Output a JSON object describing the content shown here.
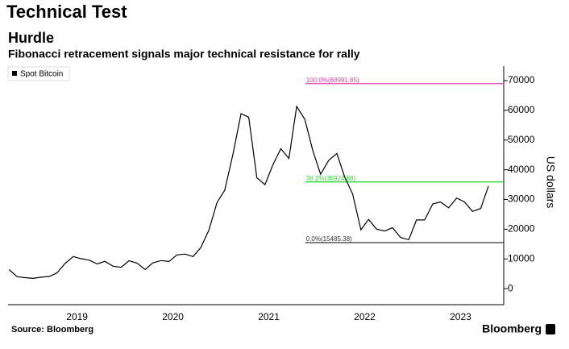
{
  "chart_data": {
    "type": "line",
    "title": "Technical Test",
    "subtitle_heading": "Hurdle",
    "subtitle": "Fibonacci retracement signals major technical resistance for rally",
    "y_axis_label": "US dollars",
    "source": "Source: Bloomberg",
    "brand": "Bloomberg",
    "legend": "top-left",
    "x": [
      2018.79,
      2018.875,
      2018.96,
      2019.04,
      2019.125,
      2019.21,
      2019.29,
      2019.375,
      2019.46,
      2019.54,
      2019.625,
      2019.71,
      2019.79,
      2019.875,
      2019.96,
      2020.04,
      2020.125,
      2020.21,
      2020.29,
      2020.375,
      2020.46,
      2020.54,
      2020.625,
      2020.71,
      2020.79,
      2020.875,
      2020.96,
      2021.04,
      2021.125,
      2021.21,
      2021.29,
      2021.375,
      2021.46,
      2021.54,
      2021.625,
      2021.71,
      2021.79,
      2021.875,
      2021.96,
      2022.04,
      2022.125,
      2022.21,
      2022.29,
      2022.375,
      2022.46,
      2022.54,
      2022.625,
      2022.71,
      2022.79,
      2022.875,
      2022.96,
      2023.04,
      2023.125,
      2023.21,
      2023.29,
      2023.375,
      2023.46,
      2023.54,
      2023.625,
      2023.71,
      2023.79
    ],
    "series": [
      {
        "name": "Spot Bitcoin",
        "color": "#000000",
        "values": [
          6400,
          4000,
          3700,
          3450,
          3850,
          4100,
          5300,
          8500,
          10800,
          10100,
          9600,
          8300,
          9200,
          7550,
          7200,
          9350,
          8600,
          6400,
          8650,
          9450,
          9150,
          11350,
          11650,
          10800,
          13800,
          19700,
          29000,
          33100,
          45200,
          58900,
          57700,
          37300,
          35000,
          41500,
          47100,
          43800,
          61300,
          57000,
          46300,
          38500,
          43200,
          45500,
          37700,
          31800,
          19800,
          23300,
          20000,
          19400,
          20500,
          17200,
          16500,
          23100,
          23100,
          28500,
          29200,
          27200,
          30500,
          29200,
          26000,
          27000,
          34500
        ]
      }
    ],
    "levels": [
      {
        "label": "100.0%(68991.85)",
        "value": 68991.85,
        "color": "#e040b0",
        "x_start": 2021.88
      },
      {
        "label": "38.2%(35924.88)",
        "value": 35924.88,
        "color": "#33dd33",
        "x_start": 2021.88
      },
      {
        "label": "0.0%(15485.38)",
        "value": 15485.38,
        "color": "#333333",
        "x_start": 2021.88
      }
    ],
    "xlim": [
      2018.78,
      2023.95
    ],
    "xticks": [
      {
        "value": 2019.5,
        "label": "2019"
      },
      {
        "value": 2020.5,
        "label": "2020"
      },
      {
        "value": 2021.5,
        "label": "2021"
      },
      {
        "value": 2022.5,
        "label": "2022"
      },
      {
        "value": 2023.5,
        "label": "2023"
      }
    ],
    "ylim": [
      -5400,
      74900
    ],
    "yticks": [
      0,
      10000,
      20000,
      30000,
      40000,
      50000,
      60000,
      70000
    ],
    "grid": false
  }
}
